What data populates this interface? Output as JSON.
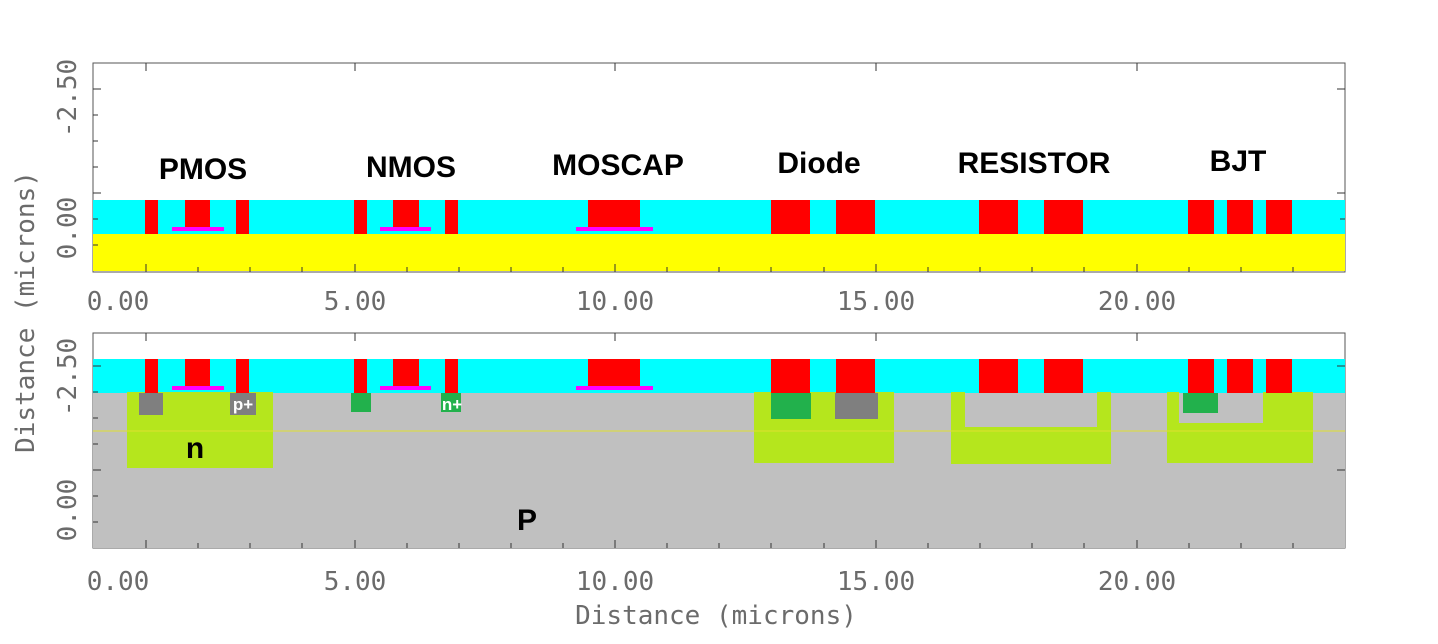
{
  "axes": {
    "x_ticks": [
      "0.00",
      "5.00",
      "10.00",
      "15.00",
      "20.00"
    ],
    "y_ticks_top": [
      "-2.50",
      "0.00"
    ],
    "y_ticks_bottom": [
      "-2.50",
      "0.00"
    ],
    "y_label": "Distance (microns)",
    "x_label": "Distance (microns)",
    "x_range": [
      0.0,
      24.0
    ]
  },
  "top_panel": {
    "device_labels": [
      "PMOS",
      "NMOS",
      "MOSCAP",
      "Diode",
      "RESISTOR",
      "BJT"
    ]
  },
  "bottom_panel": {
    "region_labels": {
      "n": "n",
      "p": "P",
      "p_plus": "p+",
      "n_plus": "n+"
    }
  },
  "colors": {
    "oxide": "#00ffff",
    "substrate_top": "#ffff00",
    "substrate_bottom": "#c0c0c0",
    "contact": "#ff0000",
    "gate_oxide": "#ff00ff",
    "n_well": "#b5e61d",
    "n_plus": "#22b14c",
    "p_plus": "#7f7f7f"
  }
}
